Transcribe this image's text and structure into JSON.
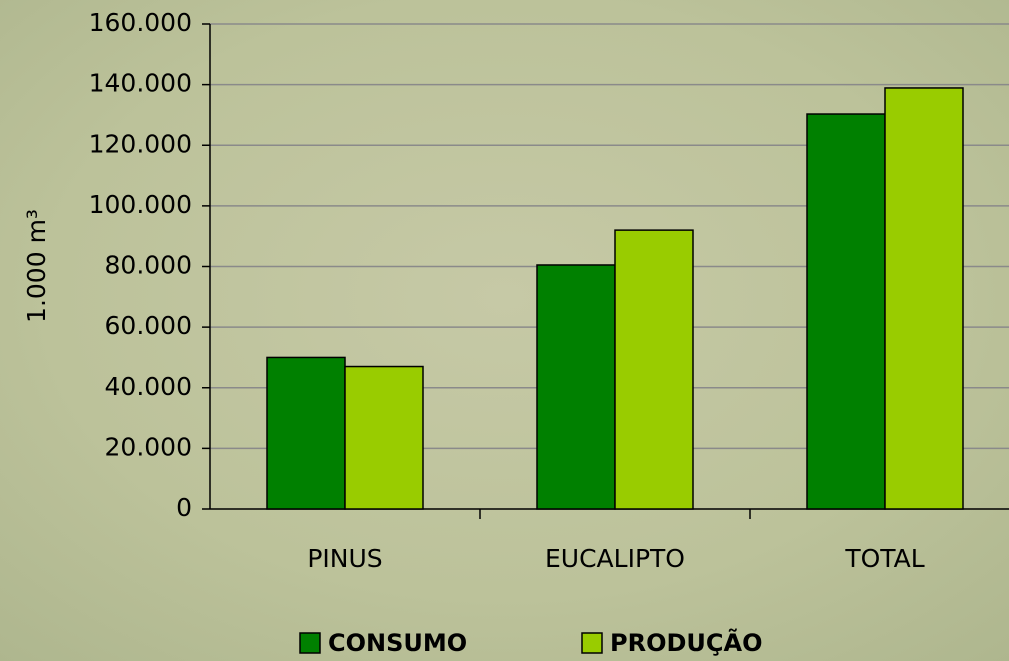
{
  "chart_data": {
    "type": "bar",
    "y_label": "1.000 m³",
    "categories": [
      "PINUS",
      "EUCALIPTO",
      "TOTAL"
    ],
    "series": [
      {
        "name": "CONSUMO",
        "color": "#008000",
        "values": [
          50000,
          80500,
          130300
        ]
      },
      {
        "name": "PRODUÇÃO",
        "color": "#99cc00",
        "values": [
          47000,
          92000,
          138900
        ]
      }
    ],
    "ylim": [
      0,
      160000
    ],
    "yticks": [
      0,
      {
        "value": 20000,
        "label": "20.000"
      },
      {
        "value": 40000,
        "label": "40.000"
      },
      {
        "value": 60000,
        "label": "60.000"
      },
      {
        "value": 80000,
        "label": "80.000"
      },
      {
        "value": 100000,
        "label": "100.000"
      },
      {
        "value": 120000,
        "label": "120.000"
      },
      {
        "value": 140000,
        "label": "140.000"
      },
      {
        "value": 160000,
        "label": "160.000"
      }
    ],
    "grid": true,
    "legend": "bottom"
  }
}
